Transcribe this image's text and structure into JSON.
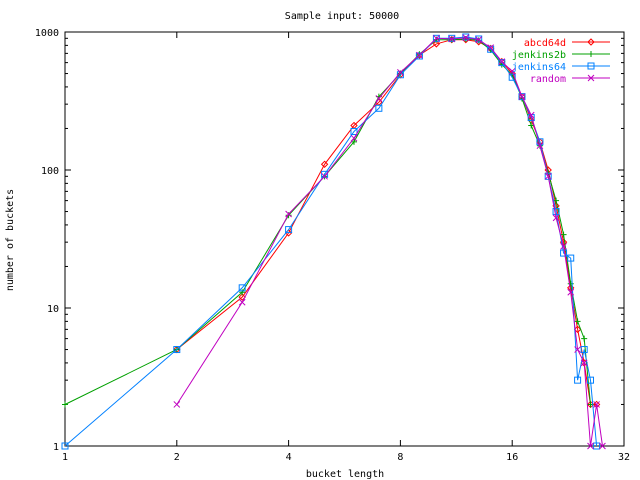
{
  "chart_data": {
    "type": "line",
    "title": "Sample input: 50000",
    "xlabel": "bucket length",
    "ylabel": "number of buckets",
    "x_scale": "log2",
    "y_scale": "log10",
    "xlim": [
      1,
      32
    ],
    "ylim": [
      1,
      1000
    ],
    "x_ticks": [
      1,
      2,
      4,
      8,
      16,
      32
    ],
    "y_ticks": [
      1,
      10,
      100,
      1000
    ],
    "x_tick_labels": [
      "1",
      "2",
      "4",
      "8",
      "16",
      "32"
    ],
    "y_tick_labels": [
      "1",
      "10",
      "100",
      "1000"
    ],
    "grid": false,
    "legend_position": "top-right",
    "series": [
      {
        "name": "abcd64d",
        "color": "#ff0000",
        "marker": "diamond",
        "x": [
          2,
          3,
          4,
          5,
          6,
          7,
          8,
          9,
          10,
          11,
          12,
          13,
          14,
          15,
          16,
          17,
          18,
          19,
          20,
          21,
          22,
          23,
          24,
          25,
          26,
          27
        ],
        "y": [
          5,
          12,
          35,
          110,
          210,
          310,
          490,
          680,
          820,
          880,
          880,
          850,
          760,
          610,
          500,
          340,
          230,
          160,
          100,
          55,
          30,
          14,
          7,
          4,
          2,
          2
        ]
      },
      {
        "name": "jenkins2b",
        "color": "#00a000",
        "marker": "plus",
        "x": [
          1,
          2,
          3,
          4,
          5,
          6,
          7,
          8,
          9,
          10,
          11,
          12,
          13,
          14,
          15,
          16,
          17,
          18,
          19,
          20,
          21,
          22,
          23,
          24,
          25,
          26
        ],
        "y": [
          2,
          5,
          13,
          47,
          90,
          160,
          340,
          500,
          690,
          880,
          880,
          890,
          870,
          740,
          580,
          490,
          330,
          210,
          150,
          95,
          60,
          34,
          15,
          8,
          6,
          2
        ]
      },
      {
        "name": "jenkins64",
        "color": "#0080ff",
        "marker": "square",
        "x": [
          1,
          2,
          3,
          4,
          5,
          6,
          7,
          8,
          9,
          10,
          11,
          12,
          13,
          14,
          15,
          16,
          17,
          18,
          19,
          20,
          21,
          22,
          23,
          24,
          25,
          26,
          27
        ],
        "y": [
          1,
          5,
          14,
          37,
          93,
          190,
          280,
          490,
          670,
          900,
          900,
          920,
          890,
          750,
          600,
          470,
          340,
          240,
          160,
          90,
          50,
          25,
          23,
          3,
          5,
          3,
          1
        ]
      },
      {
        "name": "random",
        "color": "#c000c0",
        "marker": "cross",
        "x": [
          2,
          3,
          4,
          5,
          6,
          7,
          8,
          9,
          10,
          11,
          12,
          13,
          14,
          15,
          16,
          17,
          18,
          19,
          20,
          21,
          22,
          23,
          24,
          25,
          26,
          27,
          28
        ],
        "y": [
          2,
          11,
          48,
          90,
          170,
          330,
          510,
          680,
          900,
          890,
          910,
          880,
          770,
          610,
          520,
          340,
          250,
          150,
          90,
          45,
          28,
          13,
          5,
          4,
          1,
          2,
          1
        ]
      }
    ]
  }
}
